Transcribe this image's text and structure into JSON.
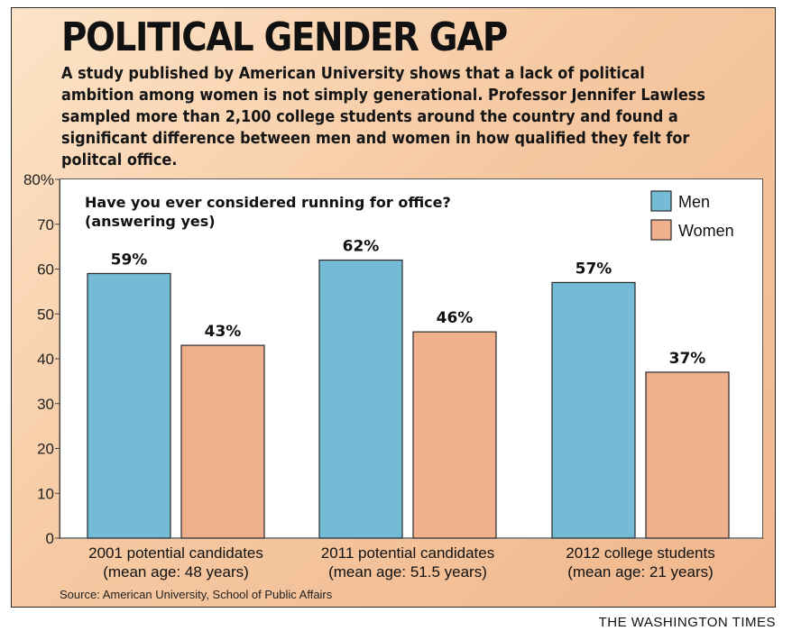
{
  "headline": "POLITICAL GENDER GAP",
  "intro": "A study published by American University shows that a lack of political ambition among women is not simply generational. Professor Jennifer Lawless sampled more than 2,100 college students around the country and found a significant difference between men and women in how qualified they felt for politcal office.",
  "source": "Source: American University, School of Public Affairs",
  "publisher": "THE WASHINGTON TIMES",
  "colors": {
    "men": "#74bcd6",
    "women": "#f0b08c",
    "bar_stroke": "#2a2a2a",
    "background": "#f6c9a2"
  },
  "chart_data": {
    "type": "bar",
    "question_line1": "Have you ever considered running for office?",
    "question_line2": "(answering yes)",
    "categories": [
      {
        "line1": "2001 potential candidates",
        "line2": "(mean age: 48 years)"
      },
      {
        "line1": "2011 potential candidates",
        "line2": "(mean age: 51.5 years)"
      },
      {
        "line1": "2012 college students",
        "line2": "(mean age: 21 years)"
      }
    ],
    "series": [
      {
        "name": "Men",
        "values": [
          59,
          62,
          57
        ],
        "labels": [
          "59%",
          "62%",
          "57%"
        ]
      },
      {
        "name": "Women",
        "values": [
          43,
          46,
          37
        ],
        "labels": [
          "43%",
          "46%",
          "37%"
        ]
      }
    ],
    "ylim": [
      0,
      80
    ],
    "yticks": [
      0,
      10,
      20,
      30,
      40,
      50,
      60,
      70,
      80
    ],
    "ytick_labels": [
      "0",
      "10",
      "20",
      "30",
      "40",
      "50",
      "60",
      "70",
      "80%"
    ],
    "legend_position": "top-right",
    "grid": false
  }
}
